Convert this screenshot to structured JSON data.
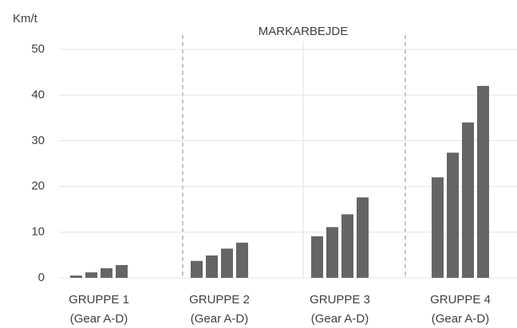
{
  "chart_data": {
    "type": "bar",
    "ylabel": "Km/t",
    "annotation": "MARKARBEJDE",
    "categories": [
      [
        "GRUPPE 1",
        "(Gear A-D)"
      ],
      [
        "GRUPPE 2",
        "(Gear A-D)"
      ],
      [
        "GRUPPE 3",
        "(Gear A-D)"
      ],
      [
        "GRUPPE 4",
        "(Gear A-D)"
      ]
    ],
    "series": [
      {
        "color": "#656565",
        "values": [
          0.5,
          3.7,
          9.1,
          22
        ]
      },
      {
        "color": "#656565",
        "values": [
          1.2,
          4.9,
          11.1,
          27.4
        ]
      },
      {
        "color": "#656565",
        "values": [
          2.1,
          6.4,
          13.9,
          34
        ]
      },
      {
        "color": "#656565",
        "values": [
          2.8,
          7.7,
          17.6,
          42
        ]
      }
    ],
    "ylim": [
      0,
      50
    ],
    "yticks": [
      0,
      10,
      20,
      30,
      40,
      50
    ],
    "grid": true
  }
}
